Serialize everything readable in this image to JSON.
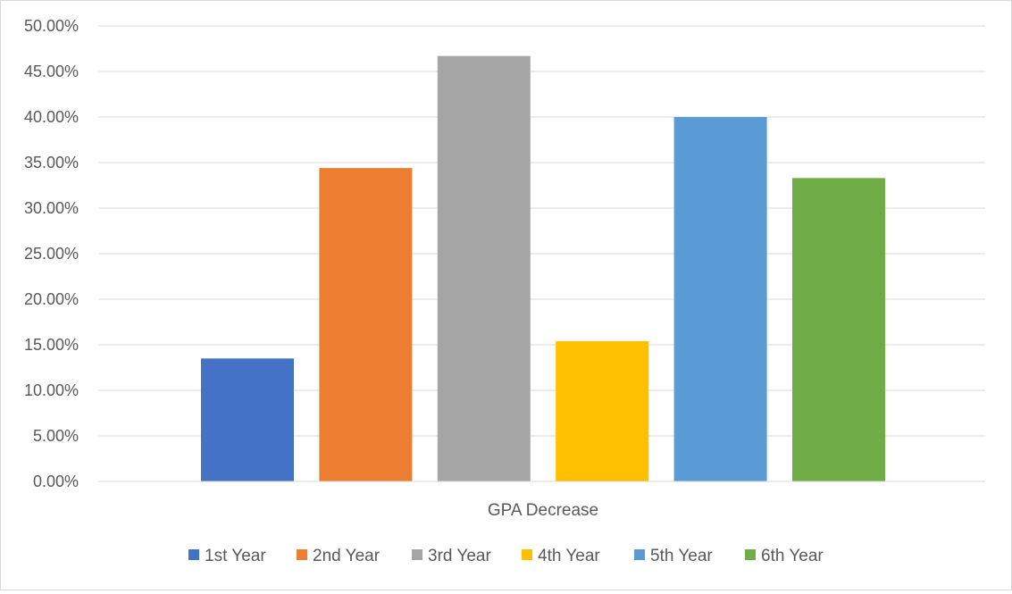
{
  "chart_data": {
    "type": "bar",
    "categories": [
      "GPA Decrease"
    ],
    "series": [
      {
        "name": "1st Year",
        "values": [
          0.135
        ],
        "color": "#4472C4"
      },
      {
        "name": "2nd Year",
        "values": [
          0.344
        ],
        "color": "#ED7D31"
      },
      {
        "name": "3rd Year",
        "values": [
          0.467
        ],
        "color": "#A5A5A5"
      },
      {
        "name": "4th Year",
        "values": [
          0.154
        ],
        "color": "#FFC000"
      },
      {
        "name": "5th Year",
        "values": [
          0.4
        ],
        "color": "#5B9BD5"
      },
      {
        "name": "6th Year",
        "values": [
          0.333
        ],
        "color": "#70AD47"
      }
    ],
    "ylim": [
      0,
      0.5
    ],
    "yticks": [
      0,
      0.05,
      0.1,
      0.15,
      0.2,
      0.25,
      0.3,
      0.35,
      0.4,
      0.45,
      0.5
    ],
    "ytick_labels": [
      "0.00%",
      "5.00%",
      "10.00%",
      "15.00%",
      "20.00%",
      "25.00%",
      "30.00%",
      "35.00%",
      "40.00%",
      "45.00%",
      "50.00%"
    ],
    "xlabel": "",
    "ylabel": "",
    "title": "",
    "grid": true,
    "legend_position": "bottom"
  }
}
